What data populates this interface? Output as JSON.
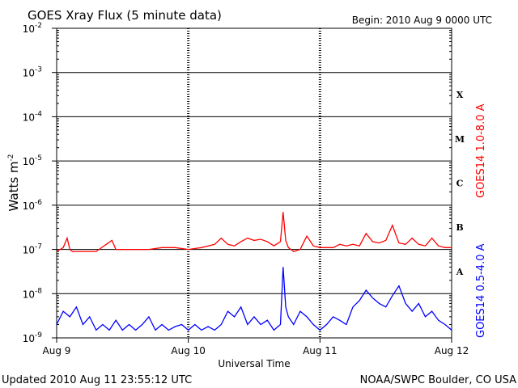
{
  "chart_data": {
    "type": "line",
    "title": "GOES Xray Flux (5 minute data)",
    "begin_text": "Begin:  2010 Aug 9 0000 UTC",
    "xlabel": "Universal Time",
    "ylabel": "Watts m",
    "ylabel_sup": "-2",
    "y_scale": "log",
    "ylim": [
      1e-09,
      0.01
    ],
    "xlim_days": [
      0,
      3
    ],
    "x_ticks": [
      "Aug 9",
      "Aug 10",
      "Aug 11",
      "Aug 12"
    ],
    "y_ticks": [
      {
        "base": "10",
        "exp": "-2",
        "value": 0.01
      },
      {
        "base": "10",
        "exp": "-3",
        "value": 0.001
      },
      {
        "base": "10",
        "exp": "-4",
        "value": 0.0001
      },
      {
        "base": "10",
        "exp": "-5",
        "value": 1e-05
      },
      {
        "base": "10",
        "exp": "-6",
        "value": 1e-06
      },
      {
        "base": "10",
        "exp": "-7",
        "value": 1e-07
      },
      {
        "base": "10",
        "exp": "-8",
        "value": 1e-08
      },
      {
        "base": "10",
        "exp": "-9",
        "value": 1e-09
      }
    ],
    "flare_classes": [
      {
        "label": "X",
        "value": 0.000316
      },
      {
        "label": "M",
        "value": 3.16e-05
      },
      {
        "label": "C",
        "value": 3.16e-06
      },
      {
        "label": "B",
        "value": 3.16e-07
      },
      {
        "label": "A",
        "value": 3.16e-08
      }
    ],
    "grid": true,
    "series": [
      {
        "name": "GOES14 1.0-8.0 A",
        "color": "#ff0000",
        "x": [
          0,
          0.05,
          0.08,
          0.1,
          0.12,
          0.2,
          0.3,
          0.42,
          0.45,
          0.5,
          0.6,
          0.7,
          0.8,
          0.9,
          1.0,
          1.1,
          1.2,
          1.25,
          1.3,
          1.35,
          1.4,
          1.45,
          1.5,
          1.55,
          1.6,
          1.65,
          1.7,
          1.72,
          1.74,
          1.76,
          1.8,
          1.85,
          1.9,
          1.95,
          2.0,
          2.1,
          2.15,
          2.2,
          2.25,
          2.3,
          2.35,
          2.4,
          2.45,
          2.5,
          2.55,
          2.6,
          2.65,
          2.7,
          2.75,
          2.8,
          2.85,
          2.9,
          2.95,
          3.0
        ],
        "y": [
          9e-08,
          1.1e-07,
          1.8e-07,
          1e-07,
          9e-08,
          9e-08,
          9e-08,
          1.6e-07,
          1e-07,
          1e-07,
          1e-07,
          1e-07,
          1.1e-07,
          1.1e-07,
          1e-07,
          1.1e-07,
          1.3e-07,
          1.8e-07,
          1.3e-07,
          1.2e-07,
          1.5e-07,
          1.8e-07,
          1.6e-07,
          1.7e-07,
          1.5e-07,
          1.2e-07,
          1.5e-07,
          7e-07,
          1.6e-07,
          1.1e-07,
          9e-08,
          1e-07,
          2e-07,
          1.2e-07,
          1.1e-07,
          1.1e-07,
          1.3e-07,
          1.2e-07,
          1.3e-07,
          1.2e-07,
          2.3e-07,
          1.5e-07,
          1.4e-07,
          1.6e-07,
          3.5e-07,
          1.4e-07,
          1.3e-07,
          1.8e-07,
          1.3e-07,
          1.2e-07,
          1.8e-07,
          1.2e-07,
          1.1e-07,
          1.1e-07
        ]
      },
      {
        "name": "GOES14 0.5-4.0 A",
        "color": "#0000ff",
        "x": [
          0,
          0.05,
          0.1,
          0.15,
          0.2,
          0.25,
          0.3,
          0.35,
          0.4,
          0.45,
          0.5,
          0.55,
          0.6,
          0.65,
          0.7,
          0.75,
          0.8,
          0.85,
          0.9,
          0.95,
          1.0,
          1.05,
          1.1,
          1.15,
          1.2,
          1.25,
          1.3,
          1.35,
          1.4,
          1.45,
          1.5,
          1.55,
          1.6,
          1.65,
          1.7,
          1.72,
          1.74,
          1.76,
          1.8,
          1.85,
          1.9,
          1.95,
          2.0,
          2.05,
          2.1,
          2.15,
          2.2,
          2.25,
          2.3,
          2.35,
          2.4,
          2.45,
          2.5,
          2.55,
          2.6,
          2.65,
          2.7,
          2.75,
          2.8,
          2.85,
          2.9,
          2.95,
          3.0
        ],
        "y": [
          2e-09,
          4e-09,
          3e-09,
          5e-09,
          2e-09,
          3e-09,
          1.5e-09,
          2e-09,
          1.5e-09,
          2.5e-09,
          1.5e-09,
          2e-09,
          1.5e-09,
          2e-09,
          3e-09,
          1.5e-09,
          2e-09,
          1.5e-09,
          1.8e-09,
          2e-09,
          1.5e-09,
          2e-09,
          1.5e-09,
          1.8e-09,
          1.5e-09,
          2e-09,
          4e-09,
          3e-09,
          5e-09,
          2e-09,
          3e-09,
          2e-09,
          2.5e-09,
          1.5e-09,
          2e-09,
          4e-08,
          5e-09,
          3e-09,
          2e-09,
          4e-09,
          3e-09,
          2e-09,
          1.5e-09,
          2e-09,
          3e-09,
          2.5e-09,
          2e-09,
          5e-09,
          7e-09,
          1.2e-08,
          8e-09,
          6e-09,
          5e-09,
          9e-09,
          1.5e-08,
          6e-09,
          4e-09,
          6e-09,
          3e-09,
          4e-09,
          2.5e-09,
          2e-09,
          1.5e-09
        ]
      }
    ],
    "footer_left": "Updated 2010 Aug 11 23:55:12 UTC",
    "footer_right": "NOAA/SWPC Boulder, CO USA"
  }
}
